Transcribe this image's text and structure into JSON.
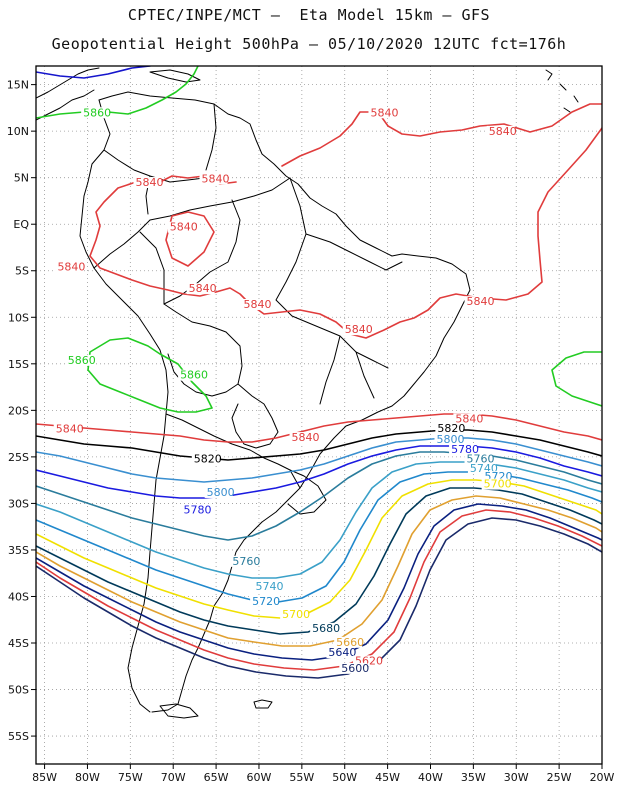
{
  "header": {
    "line1": "CPTEC/INPE/MCT –  Eta Model 15km – GFS",
    "line2": "Geopotential Height 500hPa – 05/10/2020 12UTC fct=176h"
  },
  "axes": {
    "lon_range": [
      -86,
      -20
    ],
    "lat_range": [
      17,
      -58
    ],
    "lon_labels": [
      "85W",
      "80W",
      "75W",
      "70W",
      "65W",
      "60W",
      "55W",
      "50W",
      "45W",
      "40W",
      "35W",
      "30W",
      "25W",
      "20W"
    ],
    "lat_labels": [
      "15N",
      "10N",
      "5N",
      "EQ",
      "5S",
      "10S",
      "15S",
      "20S",
      "25S",
      "30S",
      "35S",
      "40S",
      "45S",
      "50S",
      "55S"
    ],
    "grid": "dotted"
  },
  "colors": {
    "c5580": "#1515cc",
    "c5860": "#22cc22",
    "c5840": "#e03c3c",
    "c5820": "#000000",
    "c5800": "#3a8fd0",
    "c5780": "#1a1ae0",
    "c5760": "#2a7c9c",
    "c5740": "#3aa0c8",
    "c5720": "#2088cc",
    "c5700": "#f0e000",
    "c5680": "#003a5a",
    "c5660": "#e0a030",
    "c5640": "#0a2080",
    "c5620": "#e03c3c",
    "c5600": "#1a2a6a",
    "land": "#000000"
  },
  "contour_labels": [
    {
      "text": "5860",
      "lon": -80.5,
      "lat": 11.6,
      "color": "c5860"
    },
    {
      "text": "5860",
      "lon": -82.3,
      "lat": -15.0,
      "color": "c5860"
    },
    {
      "text": "5860",
      "lon": -69.2,
      "lat": -16.6,
      "color": "c5860"
    },
    {
      "text": "5840",
      "lon": -47.0,
      "lat": 11.6,
      "color": "c5840"
    },
    {
      "text": "5840",
      "lon": -33.2,
      "lat": 9.6,
      "color": "c5840"
    },
    {
      "text": "5840",
      "lon": -74.4,
      "lat": 4.1,
      "color": "c5840"
    },
    {
      "text": "5840",
      "lon": -66.7,
      "lat": 4.5,
      "color": "c5840"
    },
    {
      "text": "5840",
      "lon": -70.4,
      "lat": -0.7,
      "color": "c5840"
    },
    {
      "text": "5840",
      "lon": -83.5,
      "lat": -5.0,
      "color": "c5840"
    },
    {
      "text": "5840",
      "lon": -68.2,
      "lat": -7.3,
      "color": "c5840"
    },
    {
      "text": "5840",
      "lon": -61.8,
      "lat": -9.0,
      "color": "c5840"
    },
    {
      "text": "5840",
      "lon": -50.0,
      "lat": -11.7,
      "color": "c5840"
    },
    {
      "text": "5840",
      "lon": -35.8,
      "lat": -8.7,
      "color": "c5840"
    },
    {
      "text": "5840",
      "lon": -83.7,
      "lat": -22.4,
      "color": "c5840"
    },
    {
      "text": "5840",
      "lon": -56.2,
      "lat": -23.3,
      "color": "c5840"
    },
    {
      "text": "5840",
      "lon": -37.1,
      "lat": -21.3,
      "color": "c5840"
    },
    {
      "text": "5820",
      "lon": -39.2,
      "lat": -22.3,
      "color": "c5820"
    },
    {
      "text": "5820",
      "lon": -67.6,
      "lat": -25.6,
      "color": "c5820"
    },
    {
      "text": "5800",
      "lon": -39.3,
      "lat": -23.5,
      "color": "c5800"
    },
    {
      "text": "5800",
      "lon": -66.1,
      "lat": -29.2,
      "color": "c5800"
    },
    {
      "text": "5780",
      "lon": -37.6,
      "lat": -24.6,
      "color": "c5780"
    },
    {
      "text": "5780",
      "lon": -68.8,
      "lat": -31.1,
      "color": "c5780"
    },
    {
      "text": "5760",
      "lon": -35.8,
      "lat": -25.6,
      "color": "c5760"
    },
    {
      "text": "5760",
      "lon": -63.1,
      "lat": -36.6,
      "color": "c5760"
    },
    {
      "text": "5740",
      "lon": -35.4,
      "lat": -26.6,
      "color": "c5740"
    },
    {
      "text": "5740",
      "lon": -60.4,
      "lat": -39.3,
      "color": "c5740"
    },
    {
      "text": "5720",
      "lon": -33.7,
      "lat": -27.5,
      "color": "c5720"
    },
    {
      "text": "5720",
      "lon": -60.8,
      "lat": -40.9,
      "color": "c5720"
    },
    {
      "text": "5700",
      "lon": -33.8,
      "lat": -28.3,
      "color": "c5700"
    },
    {
      "text": "5700",
      "lon": -57.3,
      "lat": -42.3,
      "color": "c5700"
    },
    {
      "text": "5680",
      "lon": -53.8,
      "lat": -43.8,
      "color": "c5680"
    },
    {
      "text": "5660",
      "lon": -51.0,
      "lat": -45.3,
      "color": "c5660"
    },
    {
      "text": "5640",
      "lon": -51.9,
      "lat": -46.4,
      "color": "c5640"
    },
    {
      "text": "5620",
      "lon": -48.8,
      "lat": -47.3,
      "color": "c5620"
    },
    {
      "text": "5600",
      "lon": -50.4,
      "lat": -48.1,
      "color": "c5600"
    }
  ]
}
